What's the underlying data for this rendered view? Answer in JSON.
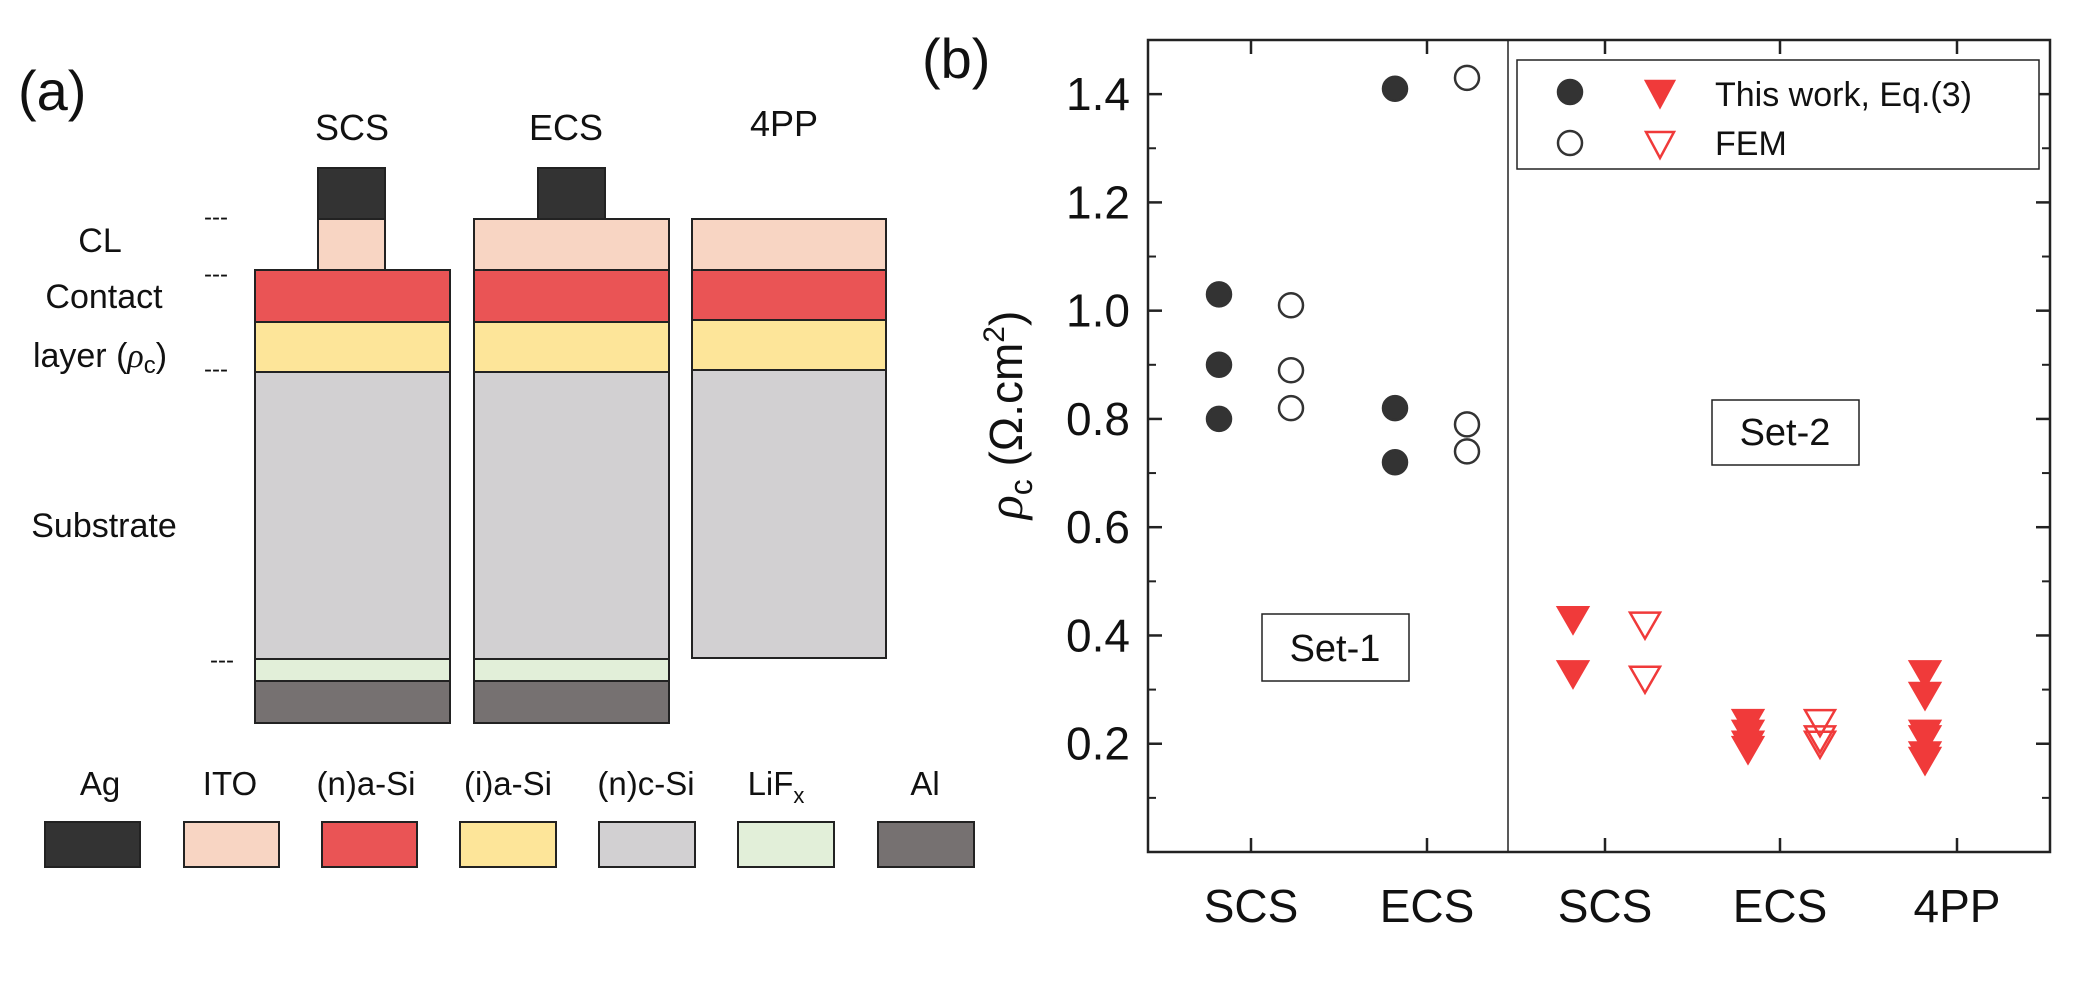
{
  "panel_a": {
    "label": "(a)",
    "columns": [
      "SCS",
      "ECS",
      "4PP"
    ],
    "side_labels": {
      "cl": "CL",
      "contact_line1": "Contact",
      "contact_line2_prefix": "layer (",
      "rho": "ρ",
      "rho_sub": "c",
      "contact_line2_suffix": ")",
      "substrate": "Substrate",
      "dash": "---"
    },
    "legend": [
      {
        "label": "Ag",
        "sub": "",
        "color": "#333333"
      },
      {
        "label": "ITO",
        "sub": "",
        "color": "#f8d5c3"
      },
      {
        "label": "(n)a-Si",
        "sub": "",
        "color": "#ea5455"
      },
      {
        "label": "(i)a-Si",
        "sub": "",
        "color": "#fde599"
      },
      {
        "label": "(n)c-Si",
        "sub": "",
        "color": "#d2d0d2"
      },
      {
        "label": "LiF",
        "sub": "x",
        "color": "#e2efd9"
      },
      {
        "label": "Al",
        "sub": "",
        "color": "#767171"
      }
    ]
  },
  "panel_b": {
    "label": "(b)",
    "set1_label": "Set-1",
    "set2_label": "Set-2",
    "legend": {
      "this_work": "This work, Eq.(3)",
      "fem": "FEM"
    },
    "ylabel": {
      "rho": "ρ",
      "sub": "c",
      "rest": " (Ω.cm",
      "sup": "2",
      "close": ")"
    }
  },
  "chart_data": {
    "type": "scatter",
    "categories": [
      "SCS",
      "ECS",
      "SCS",
      "ECS",
      "4PP"
    ],
    "ylim": [
      0.0,
      1.5
    ],
    "yticks": [
      "0.2",
      "0.4",
      "0.6",
      "0.8",
      "1.0",
      "1.2",
      "1.4"
    ],
    "series": [
      {
        "name": "This work, Eq.(3)",
        "set": "Set-1",
        "marker": "filled-circle",
        "color": "#333333",
        "points": [
          [
            0,
            1.03
          ],
          [
            0,
            0.9
          ],
          [
            0,
            0.8
          ],
          [
            1,
            1.41
          ],
          [
            1,
            0.82
          ],
          [
            1,
            0.72
          ]
        ]
      },
      {
        "name": "FEM",
        "set": "Set-1",
        "marker": "open-circle",
        "color": "#333333",
        "points": [
          [
            0,
            1.01
          ],
          [
            0,
            0.89
          ],
          [
            0,
            0.82
          ],
          [
            1,
            1.43
          ],
          [
            1,
            0.79
          ],
          [
            1,
            0.74
          ]
        ]
      },
      {
        "name": "This work, Eq.(3)",
        "set": "Set-2",
        "marker": "filled-triangle-down",
        "color": "#f03a3a",
        "points": [
          [
            2,
            0.43
          ],
          [
            2,
            0.33
          ],
          [
            3,
            0.24
          ],
          [
            3,
            0.22
          ],
          [
            3,
            0.2
          ],
          [
            3,
            0.19
          ],
          [
            4,
            0.33
          ],
          [
            4,
            0.29
          ],
          [
            4,
            0.22
          ],
          [
            4,
            0.21
          ],
          [
            4,
            0.18
          ],
          [
            4,
            0.17
          ]
        ]
      },
      {
        "name": "FEM",
        "set": "Set-2",
        "marker": "open-triangle-down",
        "color": "#f03a3a",
        "points": [
          [
            2,
            0.42
          ],
          [
            2,
            0.32
          ],
          [
            3,
            0.24
          ],
          [
            3,
            0.21
          ],
          [
            3,
            0.2
          ]
        ]
      }
    ]
  }
}
